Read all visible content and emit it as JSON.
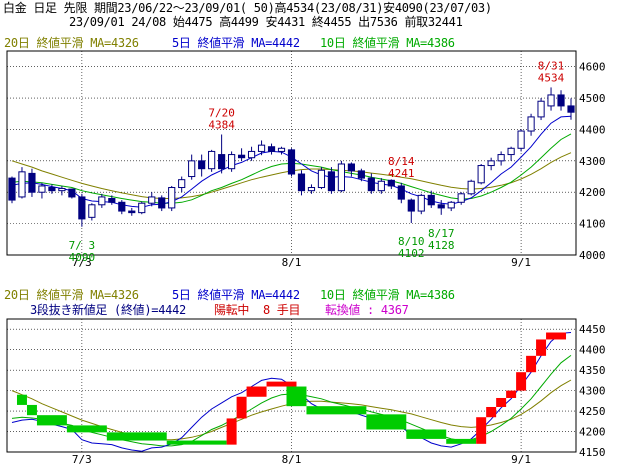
{
  "header": {
    "line1": "白金 日足 先限 期間23/06/22〜23/09/01( 50)高4534(23/08/31)安4090(23/07/03)",
    "line2": "23/09/01 24/08 始4475 高4499 安4431 終4455 出7536 前取32441"
  },
  "colors": {
    "ma20": "#808000",
    "ma5": "#0000cc",
    "ma10": "#00aa00",
    "up": "#ff0000",
    "down": "#00cc00",
    "candle": "#000080",
    "hiAnn": "#cc0000",
    "loAnn": "#009900",
    "status": "#cc00cc"
  },
  "chart_data": [
    {
      "type": "candlestick",
      "title": "白金 日足 先限",
      "legend": {
        "ma20": "20日 終値平滑 MA=4326",
        "ma5": "5日 終値平滑 MA=4442",
        "ma10": "10日 終値平滑 MA=4386"
      },
      "ylim": [
        4000,
        4650
      ],
      "yticks": [
        4000,
        4100,
        4200,
        4300,
        4400,
        4500,
        4600
      ],
      "xticks": [
        {
          "i": 7,
          "label": "7/3"
        },
        {
          "i": 28,
          "label": "8/1"
        },
        {
          "i": 51,
          "label": "9/1"
        }
      ],
      "ohlc": [
        [
          4245,
          4250,
          4165,
          4175
        ],
        [
          4185,
          4280,
          4180,
          4265
        ],
        [
          4260,
          4275,
          4185,
          4200
        ],
        [
          4200,
          4230,
          4180,
          4220
        ],
        [
          4215,
          4225,
          4195,
          4205
        ],
        [
          4205,
          4220,
          4190,
          4212
        ],
        [
          4210,
          4212,
          4180,
          4185
        ],
        [
          4185,
          4195,
          4090,
          4115
        ],
        [
          4120,
          4165,
          4110,
          4160
        ],
        [
          4160,
          4195,
          4150,
          4185
        ],
        [
          4180,
          4190,
          4160,
          4168
        ],
        [
          4168,
          4175,
          4130,
          4140
        ],
        [
          4140,
          4150,
          4125,
          4135
        ],
        [
          4135,
          4170,
          4130,
          4165
        ],
        [
          4165,
          4200,
          4155,
          4185
        ],
        [
          4182,
          4190,
          4140,
          4150
        ],
        [
          4150,
          4220,
          4140,
          4215
        ],
        [
          4215,
          4250,
          4200,
          4240
        ],
        [
          4250,
          4320,
          4240,
          4300
        ],
        [
          4300,
          4320,
          4250,
          4275
        ],
        [
          4275,
          4335,
          4265,
          4330
        ],
        [
          4320,
          4384,
          4260,
          4275
        ],
        [
          4275,
          4330,
          4265,
          4320
        ],
        [
          4318,
          4340,
          4300,
          4310
        ],
        [
          4310,
          4345,
          4300,
          4330
        ],
        [
          4330,
          4365,
          4318,
          4350
        ],
        [
          4345,
          4355,
          4320,
          4330
        ],
        [
          4330,
          4345,
          4320,
          4340
        ],
        [
          4335,
          4340,
          4250,
          4258
        ],
        [
          4258,
          4270,
          4190,
          4205
        ],
        [
          4205,
          4225,
          4195,
          4215
        ],
        [
          4215,
          4280,
          4210,
          4270
        ],
        [
          4265,
          4280,
          4195,
          4205
        ],
        [
          4205,
          4300,
          4200,
          4290
        ],
        [
          4290,
          4295,
          4250,
          4268
        ],
        [
          4268,
          4275,
          4235,
          4245
        ],
        [
          4245,
          4260,
          4195,
          4205
        ],
        [
          4205,
          4245,
          4195,
          4235
        ],
        [
          4238,
          4241,
          4210,
          4220
        ],
        [
          4220,
          4230,
          4165,
          4178
        ],
        [
          4175,
          4180,
          4102,
          4140
        ],
        [
          4140,
          4195,
          4130,
          4190
        ],
        [
          4190,
          4205,
          4150,
          4160
        ],
        [
          4160,
          4175,
          4128,
          4150
        ],
        [
          4150,
          4172,
          4140,
          4168
        ],
        [
          4168,
          4200,
          4160,
          4195
        ],
        [
          4195,
          4240,
          4190,
          4235
        ],
        [
          4230,
          4290,
          4225,
          4285
        ],
        [
          4285,
          4310,
          4270,
          4300
        ],
        [
          4300,
          4330,
          4285,
          4320
        ],
        [
          4320,
          4345,
          4300,
          4340
        ],
        [
          4340,
          4400,
          4330,
          4395
        ],
        [
          4395,
          4450,
          4380,
          4440
        ],
        [
          4440,
          4500,
          4430,
          4490
        ],
        [
          4475,
          4534,
          4460,
          4510
        ],
        [
          4510,
          4525,
          4460,
          4475
        ],
        [
          4475,
          4499,
          4431,
          4455
        ]
      ],
      "ma5": [
        4222,
        4228,
        4230,
        4225,
        4218,
        4212,
        4205,
        4180,
        4172,
        4170,
        4168,
        4160,
        4155,
        4152,
        4160,
        4162,
        4170,
        4185,
        4210,
        4235,
        4255,
        4270,
        4285,
        4295,
        4310,
        4325,
        4330,
        4328,
        4312,
        4290,
        4268,
        4255,
        4248,
        4250,
        4248,
        4240,
        4232,
        4226,
        4222,
        4210,
        4195,
        4185,
        4172,
        4165,
        4162,
        4170,
        4182,
        4205,
        4230,
        4258,
        4280,
        4312,
        4345,
        4385,
        4420,
        4440,
        4442
      ],
      "ma10": [
        4232,
        4235,
        4233,
        4230,
        4225,
        4220,
        4215,
        4205,
        4198,
        4192,
        4186,
        4180,
        4175,
        4170,
        4168,
        4165,
        4165,
        4168,
        4176,
        4190,
        4205,
        4215,
        4228,
        4240,
        4255,
        4270,
        4282,
        4290,
        4292,
        4290,
        4285,
        4280,
        4272,
        4266,
        4260,
        4255,
        4248,
        4242,
        4236,
        4228,
        4218,
        4208,
        4198,
        4190,
        4182,
        4178,
        4180,
        4188,
        4200,
        4215,
        4232,
        4255,
        4280,
        4310,
        4340,
        4368,
        4386
      ],
      "ma20": [
        4300,
        4290,
        4280,
        4268,
        4258,
        4248,
        4238,
        4228,
        4220,
        4212,
        4205,
        4198,
        4192,
        4186,
        4182,
        4180,
        4180,
        4182,
        4186,
        4192,
        4200,
        4210,
        4220,
        4230,
        4240,
        4248,
        4255,
        4262,
        4268,
        4272,
        4274,
        4274,
        4272,
        4270,
        4268,
        4265,
        4261,
        4257,
        4253,
        4248,
        4243,
        4236,
        4229,
        4222,
        4216,
        4212,
        4210,
        4212,
        4216,
        4222,
        4230,
        4242,
        4257,
        4275,
        4295,
        4312,
        4326
      ],
      "annotations": [
        {
          "i": 21,
          "date": "7/20",
          "value": "4384",
          "kind": "high"
        },
        {
          "i": 39,
          "date": "8/14",
          "value": "4241",
          "kind": "high"
        },
        {
          "i": 54,
          "date": "8/31",
          "value": "4534",
          "kind": "high"
        },
        {
          "i": 7,
          "date": "7/ 3",
          "value": "4090",
          "kind": "low"
        },
        {
          "i": 40,
          "date": "8/10",
          "value": "4102",
          "kind": "low"
        },
        {
          "i": 43,
          "date": "8/17",
          "value": "4128",
          "kind": "low"
        }
      ]
    },
    {
      "type": "three-line-break",
      "title": "3段抜き新値足 (終値)=4442",
      "status": "陽転中  8 手目",
      "reversal": "転換値 : 4367",
      "legend": {
        "ma20": "20日 終値平滑 MA=4326",
        "ma5": "5日 終値平滑 MA=4442",
        "ma10": "10日 終値平滑 MA=4386"
      },
      "ylim": [
        4150,
        4475
      ],
      "yticks": [
        4150,
        4200,
        4250,
        4300,
        4350,
        4400,
        4450
      ],
      "xticks": [
        {
          "i": 7,
          "label": "7/3"
        },
        {
          "i": 28,
          "label": "8/1"
        },
        {
          "i": 51,
          "label": "9/1"
        }
      ],
      "blocks": [
        {
          "from": 1,
          "to": 2,
          "lo": 4265,
          "hi": 4290,
          "up": false
        },
        {
          "from": 2,
          "to": 3,
          "lo": 4240,
          "hi": 4265,
          "up": false
        },
        {
          "from": 3,
          "to": 6,
          "lo": 4215,
          "hi": 4240,
          "up": false
        },
        {
          "from": 6,
          "to": 10,
          "lo": 4198,
          "hi": 4215,
          "up": false
        },
        {
          "from": 10,
          "to": 16,
          "lo": 4178,
          "hi": 4198,
          "up": false
        },
        {
          "from": 16,
          "to": 22,
          "lo": 4168,
          "hi": 4178,
          "up": false
        },
        {
          "from": 22,
          "to": 23,
          "lo": 4168,
          "hi": 4232,
          "up": true
        },
        {
          "from": 23,
          "to": 24,
          "lo": 4232,
          "hi": 4285,
          "up": true
        },
        {
          "from": 24,
          "to": 26,
          "lo": 4285,
          "hi": 4310,
          "up": true
        },
        {
          "from": 26,
          "to": 29,
          "lo": 4310,
          "hi": 4322,
          "up": true
        },
        {
          "from": 28,
          "to": 30,
          "lo": 4262,
          "hi": 4310,
          "up": false
        },
        {
          "from": 30,
          "to": 36,
          "lo": 4242,
          "hi": 4262,
          "up": false
        },
        {
          "from": 36,
          "to": 40,
          "lo": 4205,
          "hi": 4242,
          "up": false
        },
        {
          "from": 40,
          "to": 44,
          "lo": 4182,
          "hi": 4205,
          "up": false
        },
        {
          "from": 44,
          "to": 47,
          "lo": 4170,
          "hi": 4182,
          "up": false
        },
        {
          "from": 47,
          "to": 48,
          "lo": 4170,
          "hi": 4235,
          "up": true
        },
        {
          "from": 48,
          "to": 49,
          "lo": 4235,
          "hi": 4260,
          "up": true
        },
        {
          "from": 49,
          "to": 50,
          "lo": 4260,
          "hi": 4282,
          "up": true
        },
        {
          "from": 50,
          "to": 51,
          "lo": 4282,
          "hi": 4300,
          "up": true
        },
        {
          "from": 51,
          "to": 52,
          "lo": 4300,
          "hi": 4345,
          "up": true
        },
        {
          "from": 52,
          "to": 53,
          "lo": 4345,
          "hi": 4385,
          "up": true
        },
        {
          "from": 53,
          "to": 54,
          "lo": 4385,
          "hi": 4425,
          "up": true
        },
        {
          "from": 54,
          "to": 56,
          "lo": 4425,
          "hi": 4442,
          "up": true
        }
      ]
    }
  ]
}
